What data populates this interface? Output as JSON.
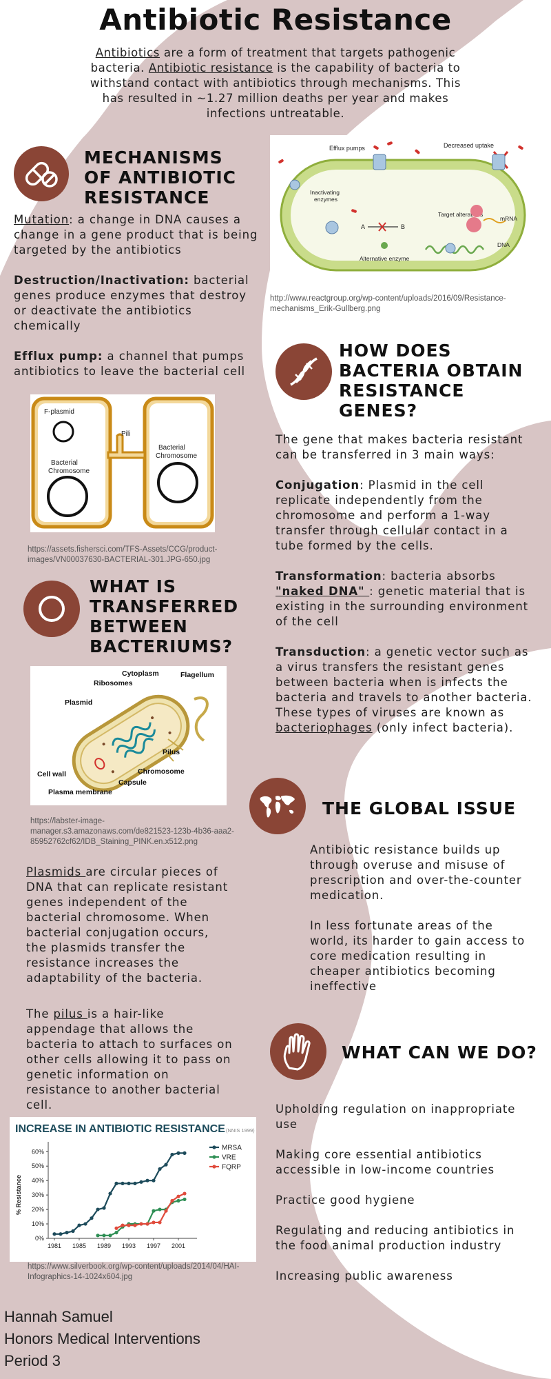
{
  "title": "Antibiotic Resistance",
  "intro": {
    "term1": "Antibiotics",
    "text1": " are a form of treatment that targets pathogenic bacteria. ",
    "term2": "Antibiotic resistance",
    "text2": " is the capability of bacteria to withstand contact with antibiotics through mechanisms. This has resulted in ~1.27 million deaths per year and makes infections untreatable."
  },
  "mechanisms": {
    "heading": "MECHANISMS OF ANTIBIOTIC RESISTANCE",
    "icon": "pill-capsule-icon",
    "mutation_term": "Mutation",
    "mutation_text": ": a change in DNA causes a change in a gene product that is being targeted by the antibiotics",
    "destruction_term": "Destruction/Inactivation:",
    "destruction_text": " bacterial genes produce enzymes that destroy or deactivate the antibiotics chemically",
    "efflux_term": "Efflux pump:",
    "efflux_text": " a channel that pumps antibiotics to leave the bacterial cell"
  },
  "mechanisms_image": {
    "efflux": "Efflux pumps",
    "uptake": "Decreased uptake",
    "inactivating1": "Inactivating",
    "inactivating2": "enzymes",
    "target": "Target alterations",
    "mrna": "mRNA",
    "a": "A",
    "b": "B",
    "dna": "DNA",
    "alt": "Alternative enzyme",
    "caption": "http://www.reactgroup.org/wp-content/uploads/2016/09/Resistance-mechanisms_Erik-Gullberg.png"
  },
  "conjugation_image": {
    "fplasmid": "F-plasmid",
    "pili": "Pili",
    "chromo_left1": "Bacterial",
    "chromo_left2": "Chromosome",
    "chromo_right1": "Bacterial",
    "chromo_right2": "Chromosome",
    "caption": "https://assets.fishersci.com/TFS-Assets/CCG/product-images/VN00037630-BACTERIAL-301.JPG-650.jpg"
  },
  "how": {
    "heading": "HOW DOES BACTERIA OBTAIN RESISTANCE GENES?",
    "icon": "dna-icon",
    "intro": " The gene that makes bacteria resistant can be transferred in 3 main ways:",
    "conj_term": "Conjugation",
    "conj_text": ": Plasmid in the cell replicate independently from the chromosome and perform a 1-way transfer through cellular contact in a tube formed by the cells.",
    "trans_term": "Transformation",
    "trans_text1": ": bacteria absorbs ",
    "trans_link": "\"naked DNA\" ",
    "trans_text2": ": genetic material that is existing in the surrounding environment  of the cell",
    "transd_term": "Transduction",
    "transd_text1": ": a genetic vector such as a virus transfers the resistant genes between bacteria when is infects the bacteria and travels to another bacteria. These types of viruses are known as ",
    "transd_link": "bacteriophages",
    "transd_text2": " (only infect bacteria)."
  },
  "what_transferred": {
    "heading": "WHAT IS TRANSFERRED BETWEEN BACTERIUMS?",
    "icon": "ring-icon"
  },
  "cell_image": {
    "cytoplasm": "Cytoplasm",
    "ribosomes": "Ribosomes",
    "flagellum": "Flagellum",
    "plasmid": "Plasmid",
    "pilus": "Pilus",
    "chromosome": "Chromosome",
    "cellwall": "Cell wall",
    "capsule": "Capsule",
    "membrane": "Plasma membrane",
    "caption": "https://labster-image-manager.s3.amazonaws.com/de821523-123b-4b36-aaa2-85952762cf62/IDB_Staining_PINK.en.x512.png"
  },
  "plasmids": {
    "term": "Plasmids ",
    "text": "are circular pieces of DNA that can replicate resistant genes independent of the bacterial chromosome. When bacterial conjugation occurs, the plasmids transfer the resistance increases the adaptability of the bacteria.",
    "pilus_pre": "The ",
    "pilus_term": "pilus ",
    "pilus_text": "is a hair-like appendage that allows the bacteria to attach to surfaces on other cells allowing it to pass on genetic information on resistance to another bacterial cell."
  },
  "global": {
    "heading": "THE GLOBAL ISSUE",
    "icon": "world-map-icon",
    "p1": "Antibiotic resistance builds up through overuse and misuse of prescription and over-the-counter medication.",
    "p2": "In less fortunate areas of the world, its harder to gain access to core medication resulting in cheaper antibiotics becoming ineffective"
  },
  "action": {
    "heading": "WHAT CAN WE DO?",
    "icon": "hand-icon",
    "items": [
      "Upholding regulation on inappropriate use",
      "Making core essential antibiotics accessible in low-income countries",
      "Practice good hygiene",
      "Regulating and reducing antibiotics in the food animal production industry",
      "Increasing public awareness"
    ]
  },
  "chart_caption": "https://www.silverbook.org/wp-content/uploads/2014/04/HAI-Infographics-14-1024x604.jpg",
  "chart_data": {
    "type": "line",
    "title": "INCREASE IN ANTIBIOTIC RESISTANCE",
    "subtitle": "(NNIS 1999)",
    "ylabel": "% Resistance",
    "xlabel": "",
    "x_ticks": [
      "1981",
      "1985",
      "1989",
      "1993",
      "1997",
      "2001"
    ],
    "y_ticks": [
      "0%",
      "10%",
      "20%",
      "30%",
      "40%",
      "50%",
      "60%"
    ],
    "xlim": [
      1980,
      2004
    ],
    "ylim": [
      0,
      63
    ],
    "legend": "top-right",
    "series": [
      {
        "name": "MRSA",
        "color": "#1d4b5b",
        "x": [
          1981,
          1982,
          1983,
          1984,
          1985,
          1986,
          1987,
          1988,
          1989,
          1990,
          1991,
          1992,
          1993,
          1994,
          1995,
          1996,
          1997,
          1998,
          1999,
          2000,
          2001,
          2002
        ],
        "y": [
          3,
          3,
          4,
          5,
          9,
          10,
          14,
          20,
          21,
          31,
          38,
          38,
          38,
          38,
          39,
          40,
          40,
          48,
          51,
          58,
          59,
          59
        ]
      },
      {
        "name": "VRE",
        "color": "#2f8f55",
        "x": [
          1988,
          1989,
          1990,
          1991,
          1992,
          1993,
          1994,
          1995,
          1996,
          1997,
          1998,
          1999,
          2000,
          2001,
          2002
        ],
        "y": [
          2,
          2,
          2,
          4,
          8,
          10,
          10,
          10,
          10,
          19,
          20,
          20,
          25,
          26,
          27
        ]
      },
      {
        "name": "FQRP",
        "color": "#e04b3c",
        "x": [
          1991,
          1992,
          1993,
          1994,
          1995,
          1996,
          1997,
          1998,
          1999,
          2000,
          2001,
          2002
        ],
        "y": [
          7,
          9,
          9,
          9,
          10,
          10,
          11,
          11,
          19,
          26,
          29,
          31
        ]
      }
    ]
  },
  "footer": {
    "name": "Hannah Samuel",
    "course": "Honors Medical Interventions",
    "period": "Period 3"
  },
  "colors": {
    "background_blob": "#d8c5c5",
    "accent_circle": "#8a4536"
  }
}
